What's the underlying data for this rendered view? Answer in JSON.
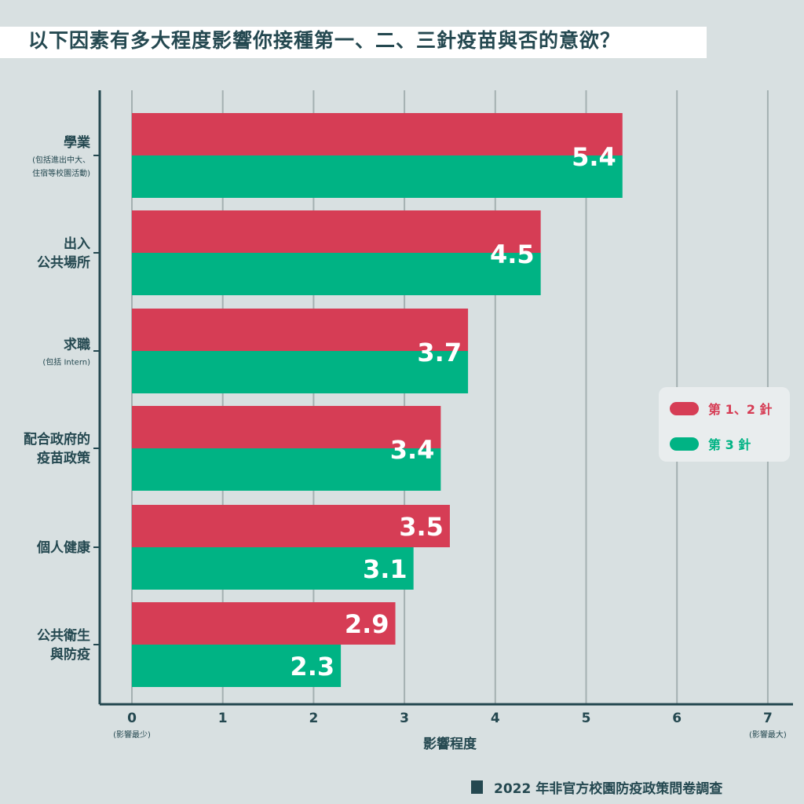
{
  "title": "以下因素有多大程度影響你接種第一、二、三針疫苗與否的意欲？",
  "footer": "2022 年非官方校園防疫政策問卷調查",
  "colors": {
    "dose12": "#d63d55",
    "dose3": "#00b384",
    "axis": "#244850",
    "grid": "#a4b0b1"
  },
  "chart_data": {
    "type": "bar",
    "orientation": "horizontal",
    "categories": [
      {
        "label": [
          "學業"
        ],
        "note": [
          "(包括進出中大、",
          "住宿等校園活動)"
        ]
      },
      {
        "label": [
          "出入",
          "公共場所"
        ],
        "note": []
      },
      {
        "label": [
          "求職"
        ],
        "note": [
          "(包括 Intern)"
        ]
      },
      {
        "label": [
          "配合政府的",
          "疫苗政策"
        ],
        "note": []
      },
      {
        "label": [
          "個人健康"
        ],
        "note": []
      },
      {
        "label": [
          "公共衛生",
          "與防疫"
        ],
        "note": []
      }
    ],
    "series": [
      {
        "name": "第 1、2 針",
        "values": [
          5.4,
          4.5,
          3.7,
          3.4,
          3.5,
          2.9
        ]
      },
      {
        "name": "第 3 針",
        "values": [
          5.4,
          4.5,
          3.7,
          3.4,
          3.1,
          2.3
        ]
      }
    ],
    "data_labels": [
      {
        "text": "5.4"
      },
      {
        "text": "4.5"
      },
      {
        "text": "3.7"
      },
      {
        "text": "3.4"
      },
      {
        "text": "3.5"
      },
      {
        "text": "3.1"
      },
      {
        "text": "2.9"
      },
      {
        "text": "2.3"
      }
    ],
    "xlim": [
      0,
      7
    ],
    "xticks": [
      "0",
      "1",
      "2",
      "3",
      "4",
      "5",
      "6",
      "7"
    ],
    "xlabel": "影響程度",
    "x_min_note": "(影響最少)",
    "x_max_note": "(影響最大)",
    "grid": true,
    "legend_position": "right"
  }
}
